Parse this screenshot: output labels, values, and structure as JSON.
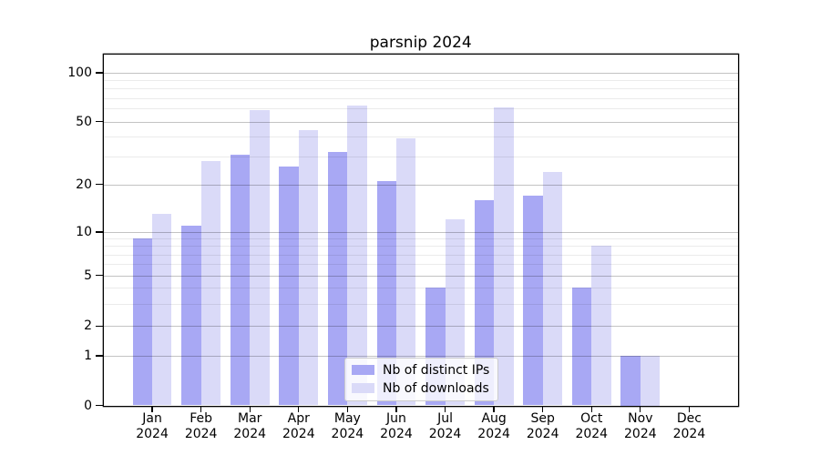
{
  "chart_data": {
    "type": "bar",
    "title": "parsnip 2024",
    "categories": [
      "Jan 2024",
      "Feb 2024",
      "Mar 2024",
      "Apr 2024",
      "May 2024",
      "Jun 2024",
      "Jul 2024",
      "Aug 2024",
      "Sep 2024",
      "Oct 2024",
      "Nov 2024",
      "Dec 2024"
    ],
    "series": [
      {
        "name": "Nb of distinct IPs",
        "color": "#a8a8f4",
        "values": [
          9,
          11,
          31,
          26,
          32,
          21,
          4,
          16,
          17,
          4,
          1,
          0
        ]
      },
      {
        "name": "Nb of downloads",
        "color": "#dadaf8",
        "values": [
          13,
          28,
          59,
          44,
          63,
          39,
          12,
          61,
          24,
          8,
          1,
          0
        ]
      }
    ],
    "xlabel": "",
    "ylabel": "",
    "yscale": "log-like (asinh), linear below 1",
    "yticks": [
      0,
      1,
      2,
      5,
      10,
      20,
      50,
      100
    ],
    "minor_gridline_values": [
      3,
      4,
      6,
      7,
      8,
      9,
      30,
      40,
      60,
      70,
      80,
      90
    ],
    "ylim": [
      0,
      130
    ],
    "grid": "horizontal major and minor lines drawn above bars",
    "legend_position": "lower center inside plot"
  },
  "colors": {
    "bar_distinct_ips": "#a8a8f4",
    "bar_downloads": "#dadaf8",
    "grid_major": "#c3c3c3",
    "grid_minor": "#ebebeb",
    "spine": "#000000",
    "legend_border": "#cccccc",
    "background": "#ffffff"
  }
}
